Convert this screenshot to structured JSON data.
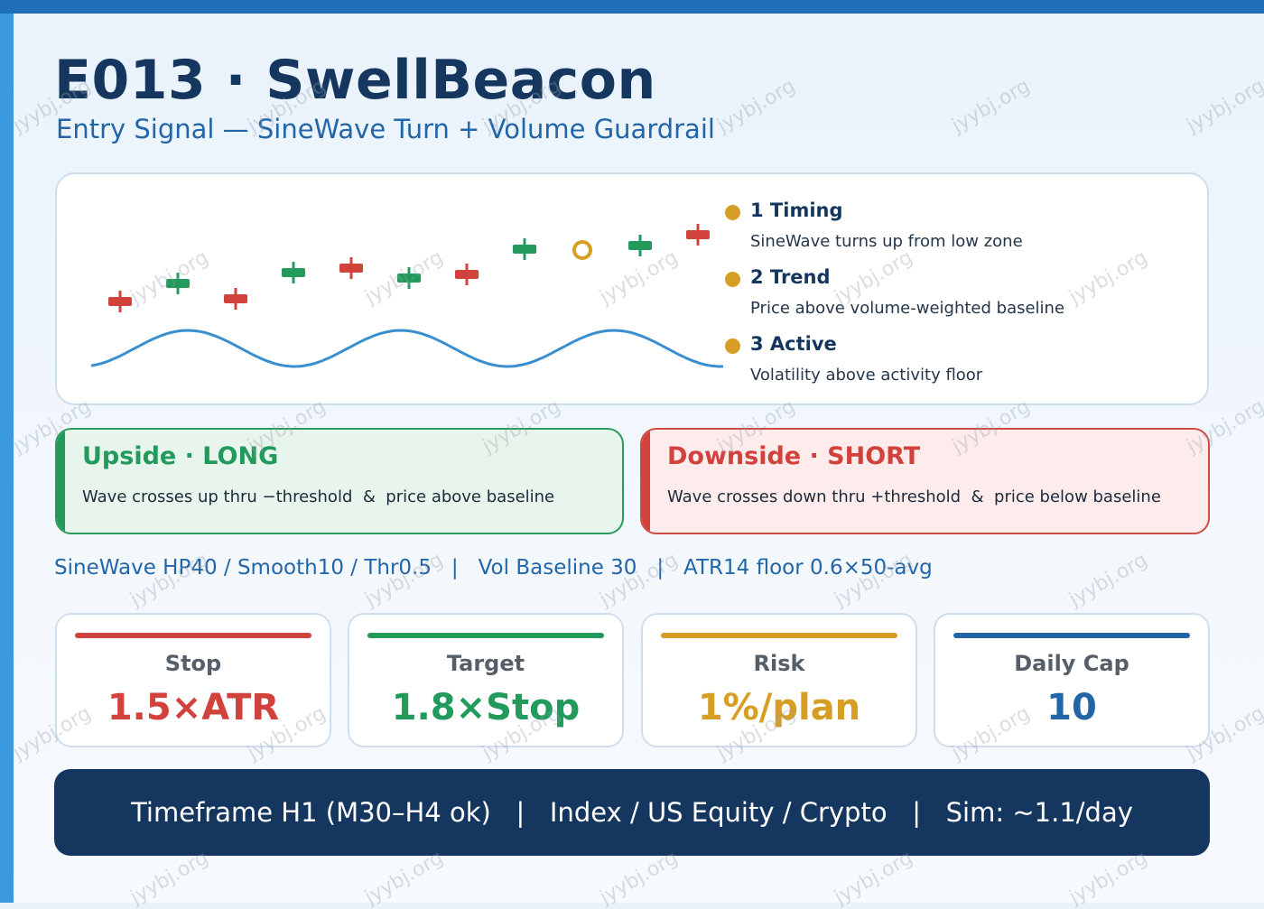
{
  "header": {
    "title": "E013 · SwellBeacon",
    "subtitle": "Entry Signal — SineWave Turn + Volume Guardrail"
  },
  "conditions": [
    {
      "label": "1 Timing",
      "desc": "SineWave turns up from low zone"
    },
    {
      "label": "2 Trend",
      "desc": "Price above volume-weighted baseline"
    },
    {
      "label": "3 Active",
      "desc": "Volatility above activity floor"
    }
  ],
  "directions": {
    "long": {
      "title": "Upside · LONG",
      "desc": "Wave crosses up thru −threshold  &  price above baseline"
    },
    "short": {
      "title": "Downside · SHORT",
      "desc": "Wave crosses down thru +threshold  &  price below baseline"
    }
  },
  "params_text": "SineWave HP40 / Smooth10 / Thr0.5   |   Vol Baseline 30   |   ATR14 floor 0.6×50-avg",
  "metrics": [
    {
      "label": "Stop",
      "value": "1.5×ATR",
      "color": "#d2423d"
    },
    {
      "label": "Target",
      "value": "1.8×Stop",
      "color": "#229a5b"
    },
    {
      "label": "Risk",
      "value": "1%/plan",
      "color": "#d79e25"
    },
    {
      "label": "Daily Cap",
      "value": "10",
      "color": "#2266a8"
    }
  ],
  "footer_text": "Timeframe H1 (M30–H4 ok)   |   Index / US Equity / Crypto   |   Sim: ~1.1/day",
  "watermark": "jyybj.org",
  "colors": {
    "up": "#229a5b",
    "down": "#d2423d",
    "signal": "#d79e25",
    "wave": "#3a8fd0"
  }
}
